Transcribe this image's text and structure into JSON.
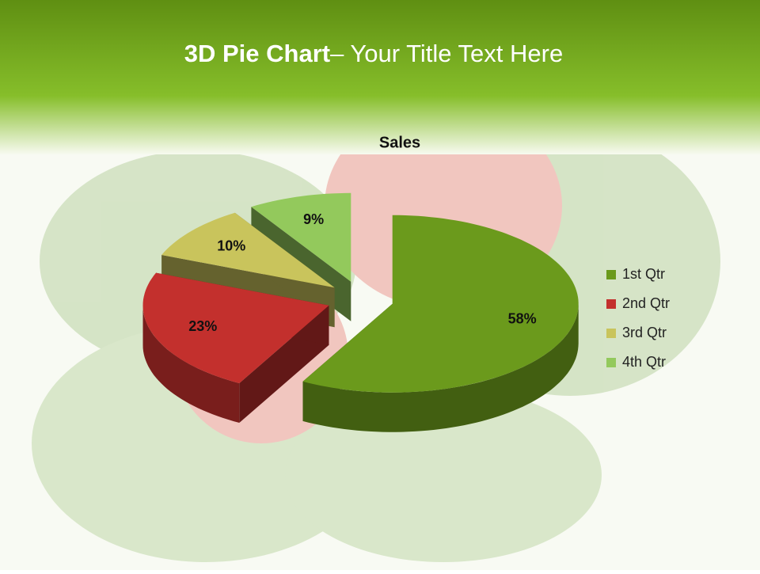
{
  "slide": {
    "title": [
      "3D Pie Chart",
      "– Your Title Text Here"
    ]
  },
  "chart_data": {
    "type": "pie",
    "title": "Sales",
    "categories": [
      "1st Qtr",
      "2nd Qtr",
      "3rd Qtr",
      "4th Qtr"
    ],
    "values": [
      58,
      23,
      10,
      9
    ],
    "value_labels": [
      "58%",
      "23%",
      "10%",
      "9%"
    ],
    "colors": [
      "#6b9a1c",
      "#c3302d",
      "#c9c45c",
      "#93c95c"
    ],
    "legend": "right"
  }
}
